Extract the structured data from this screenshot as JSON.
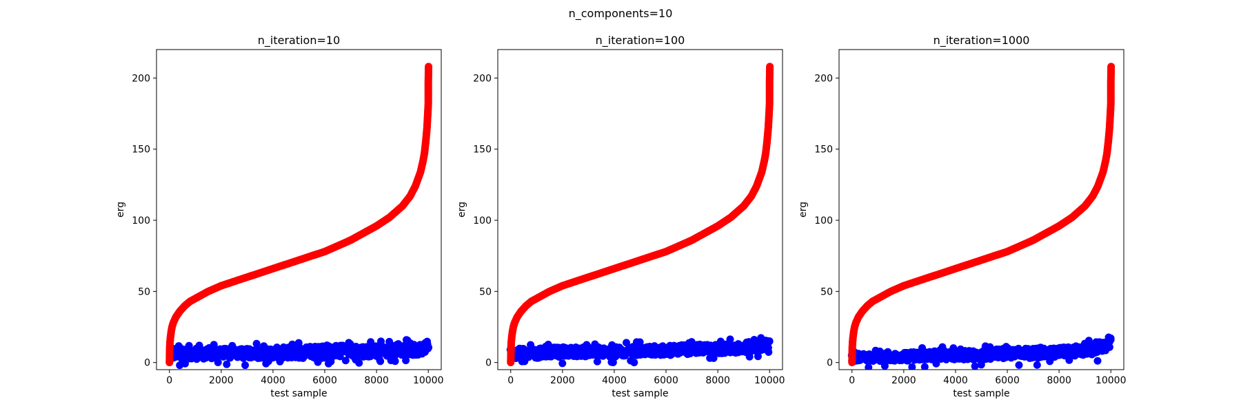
{
  "figure": {
    "suptitle": "n_components=10"
  },
  "chart_data": [
    {
      "type": "scatter",
      "title": "n_iteration=10",
      "xlabel": "test sample",
      "ylabel": "erg",
      "xlim": [
        -500,
        10500
      ],
      "ylim": [
        -5,
        220
      ],
      "xticks": [
        0,
        2000,
        4000,
        6000,
        8000,
        10000
      ],
      "yticks": [
        0,
        50,
        100,
        150,
        200
      ],
      "grid": false,
      "series": [
        {
          "color": "#ff0000",
          "points": [
            [
              0,
              0
            ],
            [
              5,
              5
            ],
            [
              10,
              10
            ],
            [
              20,
              14
            ],
            [
              40,
              18
            ],
            [
              70,
              22
            ],
            [
              100,
              25
            ],
            [
              150,
              28
            ],
            [
              250,
              32
            ],
            [
              400,
              36
            ],
            [
              600,
              40
            ],
            [
              800,
              43
            ],
            [
              1000,
              45
            ],
            [
              1500,
              50
            ],
            [
              2000,
              54
            ],
            [
              2500,
              57
            ],
            [
              3000,
              60
            ],
            [
              3500,
              63
            ],
            [
              4000,
              66
            ],
            [
              4500,
              69
            ],
            [
              5000,
              72
            ],
            [
              5500,
              75
            ],
            [
              6000,
              78
            ],
            [
              6500,
              82
            ],
            [
              7000,
              86
            ],
            [
              7500,
              91
            ],
            [
              8000,
              96
            ],
            [
              8500,
              102
            ],
            [
              9000,
              110
            ],
            [
              9300,
              117
            ],
            [
              9500,
              124
            ],
            [
              9700,
              134
            ],
            [
              9800,
              142
            ],
            [
              9850,
              147
            ],
            [
              9900,
              155
            ],
            [
              9950,
              165
            ],
            [
              9980,
              175
            ],
            [
              10000,
              182
            ],
            [
              10000,
              193
            ],
            [
              10000,
              197
            ],
            [
              10010,
              208
            ]
          ]
        },
        {
          "color": "#0000ff",
          "band": [
            [
              0,
              2,
              10
            ],
            [
              1000,
              2,
              10
            ],
            [
              2000,
              3,
              10
            ],
            [
              3000,
              3,
              10
            ],
            [
              4000,
              3,
              11
            ],
            [
              5000,
              3,
              11
            ],
            [
              6000,
              3,
              12
            ],
            [
              7000,
              4,
              12
            ],
            [
              8000,
              4,
              12
            ],
            [
              9000,
              5,
              13
            ],
            [
              9500,
              5,
              14
            ],
            [
              10000,
              7,
              15
            ]
          ]
        }
      ]
    },
    {
      "type": "scatter",
      "title": "n_iteration=100",
      "xlabel": "test sample",
      "ylabel": "erg",
      "xlim": [
        -500,
        10500
      ],
      "ylim": [
        -5,
        220
      ],
      "xticks": [
        0,
        2000,
        4000,
        6000,
        8000,
        10000
      ],
      "yticks": [
        0,
        50,
        100,
        150,
        200
      ],
      "grid": false,
      "series": [
        {
          "color": "#ff0000",
          "points": [
            [
              0,
              0
            ],
            [
              5,
              5
            ],
            [
              10,
              10
            ],
            [
              20,
              14
            ],
            [
              40,
              18
            ],
            [
              70,
              22
            ],
            [
              100,
              25
            ],
            [
              150,
              28
            ],
            [
              250,
              32
            ],
            [
              400,
              36
            ],
            [
              600,
              40
            ],
            [
              800,
              43
            ],
            [
              1000,
              45
            ],
            [
              1500,
              50
            ],
            [
              2000,
              54
            ],
            [
              2500,
              57
            ],
            [
              3000,
              60
            ],
            [
              3500,
              63
            ],
            [
              4000,
              66
            ],
            [
              4500,
              69
            ],
            [
              5000,
              72
            ],
            [
              5500,
              75
            ],
            [
              6000,
              78
            ],
            [
              6500,
              82
            ],
            [
              7000,
              86
            ],
            [
              7500,
              91
            ],
            [
              8000,
              96
            ],
            [
              8500,
              102
            ],
            [
              9000,
              110
            ],
            [
              9300,
              117
            ],
            [
              9500,
              124
            ],
            [
              9700,
              134
            ],
            [
              9800,
              142
            ],
            [
              9850,
              147
            ],
            [
              9900,
              155
            ],
            [
              9950,
              165
            ],
            [
              9980,
              175
            ],
            [
              10000,
              182
            ],
            [
              10000,
              193
            ],
            [
              10000,
              197
            ],
            [
              10010,
              208
            ]
          ]
        },
        {
          "color": "#0000ff",
          "band": [
            [
              0,
              3,
              10
            ],
            [
              1000,
              3,
              10
            ],
            [
              2000,
              4,
              11
            ],
            [
              3000,
              4,
              11
            ],
            [
              4000,
              4,
              11
            ],
            [
              5000,
              5,
              12
            ],
            [
              6000,
              5,
              12
            ],
            [
              7000,
              6,
              13
            ],
            [
              8000,
              6,
              13
            ],
            [
              9000,
              7,
              14
            ],
            [
              9500,
              8,
              15
            ],
            [
              10000,
              10,
              16
            ]
          ]
        }
      ]
    },
    {
      "type": "scatter",
      "title": "n_iteration=1000",
      "xlabel": "test sample",
      "ylabel": "erg",
      "xlim": [
        -500,
        10500
      ],
      "ylim": [
        -5,
        220
      ],
      "xticks": [
        0,
        2000,
        4000,
        6000,
        8000,
        10000
      ],
      "yticks": [
        0,
        50,
        100,
        150,
        200
      ],
      "grid": false,
      "series": [
        {
          "color": "#ff0000",
          "points": [
            [
              0,
              0
            ],
            [
              5,
              5
            ],
            [
              10,
              10
            ],
            [
              20,
              14
            ],
            [
              40,
              18
            ],
            [
              70,
              22
            ],
            [
              100,
              25
            ],
            [
              150,
              28
            ],
            [
              250,
              32
            ],
            [
              400,
              36
            ],
            [
              600,
              40
            ],
            [
              800,
              43
            ],
            [
              1000,
              45
            ],
            [
              1500,
              50
            ],
            [
              2000,
              54
            ],
            [
              2500,
              57
            ],
            [
              3000,
              60
            ],
            [
              3500,
              63
            ],
            [
              4000,
              66
            ],
            [
              4500,
              69
            ],
            [
              5000,
              72
            ],
            [
              5500,
              75
            ],
            [
              6000,
              78
            ],
            [
              6500,
              82
            ],
            [
              7000,
              86
            ],
            [
              7500,
              91
            ],
            [
              8000,
              96
            ],
            [
              8500,
              102
            ],
            [
              9000,
              110
            ],
            [
              9300,
              117
            ],
            [
              9500,
              124
            ],
            [
              9700,
              134
            ],
            [
              9800,
              142
            ],
            [
              9850,
              147
            ],
            [
              9900,
              155
            ],
            [
              9950,
              165
            ],
            [
              9980,
              175
            ],
            [
              10000,
              182
            ],
            [
              10000,
              193
            ],
            [
              10000,
              197
            ],
            [
              10010,
              208
            ]
          ]
        },
        {
          "color": "#0000ff",
          "band": [
            [
              0,
              0,
              6
            ],
            [
              1000,
              1,
              7
            ],
            [
              2000,
              1,
              7
            ],
            [
              3000,
              2,
              8
            ],
            [
              4000,
              2,
              8
            ],
            [
              5000,
              2,
              9
            ],
            [
              6000,
              3,
              10
            ],
            [
              7000,
              3,
              10
            ],
            [
              8000,
              4,
              11
            ],
            [
              9000,
              5,
              12
            ],
            [
              9500,
              6,
              14
            ],
            [
              10000,
              10,
              18
            ]
          ]
        }
      ]
    }
  ]
}
